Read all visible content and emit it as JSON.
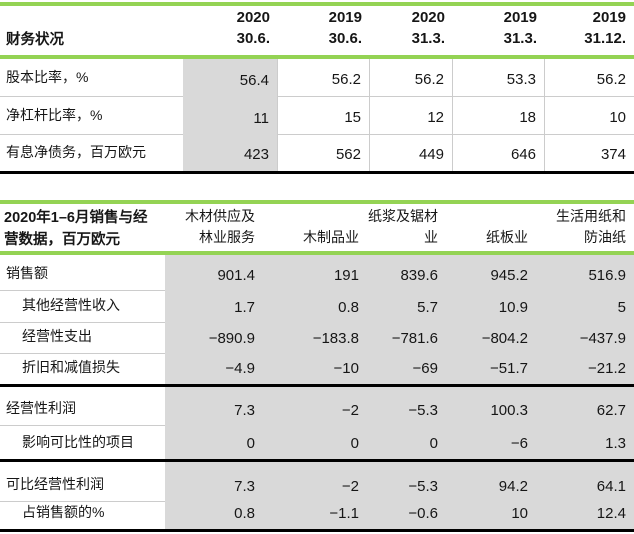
{
  "colors": {
    "green": "#94d354",
    "shade": "#d9d9d9",
    "rule": "#cccccc",
    "black": "#000000"
  },
  "table1": {
    "title": "财务状况",
    "columns": [
      {
        "year": "2020",
        "date": "30.6."
      },
      {
        "year": "2019",
        "date": "30.6."
      },
      {
        "year": "2020",
        "date": "31.3."
      },
      {
        "year": "2019",
        "date": "31.3."
      },
      {
        "year": "2019",
        "date": "31.12."
      }
    ],
    "rows": [
      {
        "label": "股本比率，%",
        "values": [
          "56.4",
          "56.2",
          "56.2",
          "53.3",
          "56.2"
        ]
      },
      {
        "label": "净杠杆比率，%",
        "values": [
          "11",
          "15",
          "12",
          "18",
          "10"
        ]
      },
      {
        "label": "有息净债务，百万欧元",
        "values": [
          "423",
          "562",
          "449",
          "646",
          "374"
        ]
      }
    ]
  },
  "table2": {
    "title_line1": "2020年1–6月销售与经",
    "title_line2": "营数据，百万欧元",
    "columns": [
      {
        "line1": "木材供应及",
        "line2": "林业服务"
      },
      {
        "line1": "",
        "line2": "木制品业"
      },
      {
        "line1": "纸浆及锯材",
        "line2": "业"
      },
      {
        "line1": "",
        "line2": "纸板业"
      },
      {
        "line1": "生活用纸和",
        "line2": "防油纸"
      }
    ],
    "rows": [
      {
        "label": "销售额",
        "values": [
          "901.4",
          "191",
          "839.6",
          "945.2",
          "516.9"
        ]
      },
      {
        "label": "其他经营性收入",
        "values": [
          "1.7",
          "0.8",
          "5.7",
          "10.9",
          "5"
        ]
      },
      {
        "label": "经营性支出",
        "values": [
          "−890.9",
          "−183.8",
          "−781.6",
          "−804.2",
          "−437.9"
        ]
      },
      {
        "label": "折旧和减值损失",
        "values": [
          "−4.9",
          "−10",
          "−69",
          "−51.7",
          "−21.2"
        ]
      },
      {
        "label": "经营性利润",
        "values": [
          "7.3",
          "−2",
          "−5.3",
          "100.3",
          "62.7"
        ]
      },
      {
        "label": "影响可比性的项目",
        "values": [
          "0",
          "0",
          "0",
          "−6",
          "1.3"
        ]
      },
      {
        "label": "可比经营性利润",
        "values": [
          "7.3",
          "−2",
          "−5.3",
          "94.2",
          "64.1"
        ]
      },
      {
        "label": "占销售额的%",
        "values": [
          "0.8",
          "−1.1",
          "−0.6",
          "10",
          "12.4"
        ]
      }
    ]
  }
}
